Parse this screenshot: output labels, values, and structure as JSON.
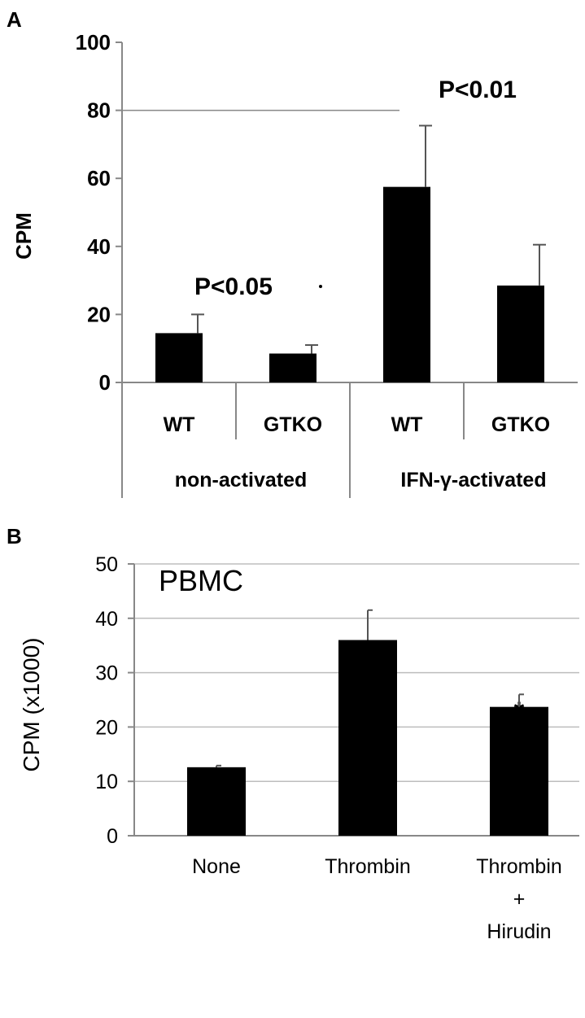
{
  "chart_data": [
    {
      "panel": "A",
      "type": "bar",
      "ylabel": "CPM",
      "ylim": [
        0,
        100
      ],
      "yticks": [
        0,
        20,
        40,
        60,
        80,
        100
      ],
      "categories": [
        "WT",
        "GTKO",
        "WT",
        "GTKO"
      ],
      "groups": [
        "non-activated",
        "IFN-γ-activated"
      ],
      "values": [
        14.5,
        8.5,
        57.5,
        28.5
      ],
      "errors": [
        5.5,
        2.5,
        18,
        12
      ],
      "annotations": [
        "P<0.05",
        "P<0.01"
      ],
      "grid": false
    },
    {
      "panel": "B",
      "type": "bar",
      "ylabel": "CPM (x1000)",
      "ylim": [
        0,
        50
      ],
      "yticks": [
        0,
        10,
        20,
        30,
        40,
        50
      ],
      "categories": [
        [
          "None"
        ],
        [
          "Thrombin"
        ],
        [
          "Thrombin",
          "+",
          "Hirudin"
        ]
      ],
      "values": [
        12.6,
        36,
        23.7
      ],
      "errors": [
        0.3,
        5.5,
        2.3
      ],
      "annotation": "PBMC",
      "marker": "*",
      "grid": true
    }
  ]
}
